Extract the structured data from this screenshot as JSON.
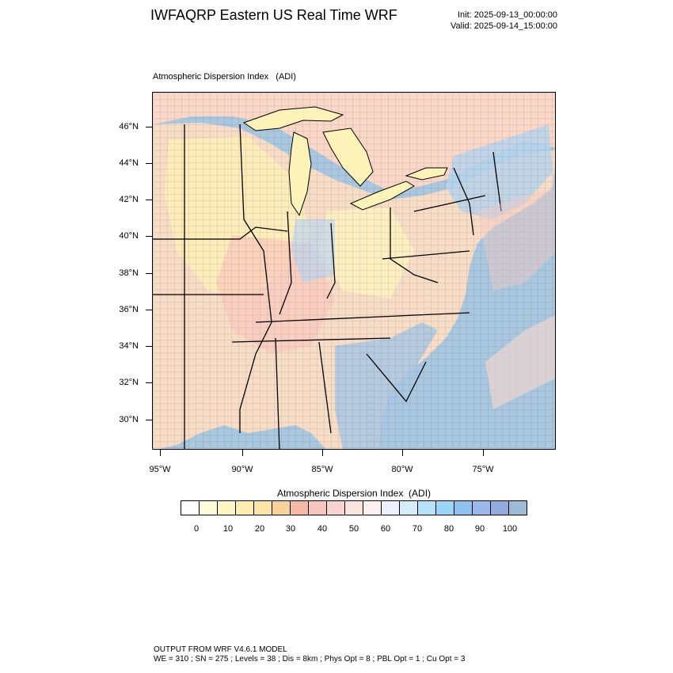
{
  "header": {
    "title": "IWFAQRP Eastern US Real Time WRF",
    "init": "Init: 2025-09-13_00:00:00",
    "valid": "Valid: 2025-09-14_15:00:00"
  },
  "map": {
    "field_label": "Atmospheric Dispersion Index   (ADI)",
    "lat_ticks": [
      "46°N",
      "44°N",
      "42°N",
      "40°N",
      "38°N",
      "36°N",
      "34°N",
      "32°N",
      "30°N"
    ],
    "lon_ticks": [
      "95°W",
      "90°W",
      "85°W",
      "80°W",
      "75°W"
    ],
    "colors": {
      "ocean": "#a9c8e0",
      "land_base": "#f7dcc6",
      "lake": "#fdf3b8",
      "state_line": "#000000",
      "county_line": "#2b2b2b"
    }
  },
  "colorbar": {
    "title": "Atmospheric Dispersion Index  (ADI)",
    "labels": [
      "0",
      "10",
      "20",
      "30",
      "40",
      "50",
      "60",
      "70",
      "80",
      "90",
      "100"
    ],
    "colors": [
      "#ffffff",
      "#fffbd8",
      "#fff5c0",
      "#ffeeb0",
      "#fde5a6",
      "#f9d29a",
      "#f6b9a3",
      "#f5c6c0",
      "#f9d3cf",
      "#fbe3de",
      "#fdf0ee",
      "#eef1fb",
      "#d5ecfa",
      "#b6e3fa",
      "#9ad6f7",
      "#8fc2f0",
      "#9bb8ec",
      "#93aadf",
      "#9dbad6"
    ]
  },
  "footer": {
    "line1": "OUTPUT FROM WRF V4.6.1 MODEL",
    "line2": "WE = 310 ; SN = 275 ; Levels = 38 ; Dis = 8km ; Phys Opt = 8 ; PBL Opt = 1 ; Cu Opt = 3"
  }
}
